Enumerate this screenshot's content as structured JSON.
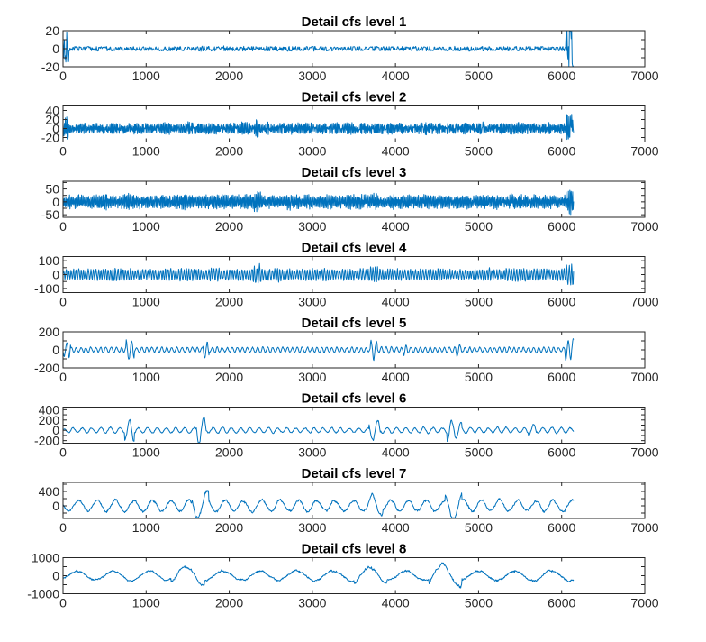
{
  "chart_data": [
    {
      "type": "line",
      "title": "Detail cfs level 1",
      "n": 6144,
      "seed": 11,
      "period": 5,
      "baseAmp": 2.2,
      "bursts": [
        [
          0,
          70,
          8
        ],
        [
          6050,
          6144,
          14
        ]
      ],
      "xlim": [
        0,
        7000
      ],
      "ylim": [
        -20,
        20
      ],
      "xticks": [
        0,
        1000,
        2000,
        3000,
        4000,
        5000,
        6000,
        7000
      ],
      "xtick_labels": [
        "0",
        "1000",
        "2000",
        "3000",
        "4000",
        "5000",
        "6000",
        "7000"
      ],
      "yticks": [
        20,
        0,
        -20
      ],
      "ytick_labels": [
        "20",
        "0",
        "-20"
      ],
      "minor_y": 10
    },
    {
      "type": "line",
      "title": "Detail cfs level 2",
      "n": 6144,
      "seed": 22,
      "period": 9,
      "baseAmp": 11,
      "bursts": [
        [
          0,
          70,
          3
        ],
        [
          2300,
          2350,
          1.6
        ],
        [
          6050,
          6144,
          3
        ]
      ],
      "xlim": [
        0,
        7000
      ],
      "ylim": [
        -30,
        50
      ],
      "xticks": [
        0,
        1000,
        2000,
        3000,
        4000,
        5000,
        6000,
        7000
      ],
      "xtick_labels": [
        "0",
        "1000",
        "2000",
        "3000",
        "4000",
        "5000",
        "6000",
        "7000"
      ],
      "yticks": [
        40,
        20,
        0,
        -20
      ],
      "ytick_labels": [
        "40",
        "20",
        "0",
        "-20"
      ],
      "minor_y": 10
    },
    {
      "type": "line",
      "title": "Detail cfs level 3",
      "n": 6144,
      "seed": 33,
      "period": 16,
      "baseAmp": 24,
      "bursts": [
        [
          2300,
          2380,
          1.6
        ],
        [
          3700,
          3800,
          1.3
        ],
        [
          6050,
          6144,
          2
        ]
      ],
      "xlim": [
        0,
        7000
      ],
      "ylim": [
        -60,
        80
      ],
      "xticks": [
        0,
        1000,
        2000,
        3000,
        4000,
        5000,
        6000,
        7000
      ],
      "xtick_labels": [
        "0",
        "1000",
        "2000",
        "3000",
        "4000",
        "5000",
        "6000",
        "7000"
      ],
      "yticks": [
        50,
        0,
        -50
      ],
      "ytick_labels": [
        "50",
        "0",
        "-50"
      ],
      "minor_y": 25
    },
    {
      "type": "line",
      "title": "Detail cfs level 4",
      "n": 6144,
      "seed": 44,
      "period": 30,
      "baseAmp": 38,
      "bursts": [
        [
          2280,
          2380,
          1.7
        ],
        [
          3700,
          3800,
          1.4
        ],
        [
          5100,
          5150,
          1.3
        ],
        [
          6050,
          6144,
          1.8
        ]
      ],
      "xlim": [
        0,
        7000
      ],
      "ylim": [
        -130,
        130
      ],
      "xticks": [
        0,
        1000,
        2000,
        3000,
        4000,
        5000,
        6000,
        7000
      ],
      "xtick_labels": [
        "0",
        "1000",
        "2000",
        "3000",
        "4000",
        "5000",
        "6000",
        "7000"
      ],
      "yticks": [
        100,
        0,
        -100
      ],
      "ytick_labels": [
        "100",
        "0",
        "-100"
      ],
      "minor_y": 50
    },
    {
      "type": "line",
      "title": "Detail cfs level 5",
      "n": 6144,
      "seed": 55,
      "period": 60,
      "baseAmp": 28,
      "bursts": [
        [
          0,
          90,
          4
        ],
        [
          760,
          860,
          3.5
        ],
        [
          1680,
          1760,
          3
        ],
        [
          3700,
          3780,
          3.5
        ],
        [
          4100,
          4150,
          2
        ],
        [
          4720,
          4800,
          2.5
        ],
        [
          6040,
          6144,
          4
        ]
      ],
      "xlim": [
        0,
        7000
      ],
      "ylim": [
        -200,
        200
      ],
      "xticks": [
        0,
        1000,
        2000,
        3000,
        4000,
        5000,
        6000,
        7000
      ],
      "xtick_labels": [
        "0",
        "1000",
        "2000",
        "3000",
        "4000",
        "5000",
        "6000",
        "7000"
      ],
      "yticks": [
        200,
        0,
        -200
      ],
      "ytick_labels": [
        "200",
        "0",
        "-200"
      ],
      "minor_y": 100
    },
    {
      "type": "line",
      "title": "Detail cfs level 6",
      "n": 6144,
      "seed": 66,
      "period": 110,
      "baseAmp": 50,
      "bursts": [
        [
          740,
          860,
          4.5
        ],
        [
          1600,
          1720,
          5
        ],
        [
          3680,
          3820,
          4
        ],
        [
          4620,
          4800,
          3.5
        ],
        [
          5600,
          5700,
          2
        ]
      ],
      "xlim": [
        0,
        7000
      ],
      "ylim": [
        -250,
        450
      ],
      "xticks": [
        0,
        1000,
        2000,
        3000,
        4000,
        5000,
        6000,
        7000
      ],
      "xtick_labels": [
        "0",
        "1000",
        "2000",
        "3000",
        "4000",
        "5000",
        "6000",
        "7000"
      ],
      "yticks": [
        400,
        200,
        0,
        -200
      ],
      "ytick_labels": [
        "400",
        "200",
        "0",
        "-200"
      ],
      "minor_y": 100
    },
    {
      "type": "line",
      "title": "Detail cfs level 7",
      "n": 6144,
      "seed": 77,
      "period": 220,
      "baseAmp": 150,
      "bursts": [
        [
          1550,
          1750,
          2.6
        ],
        [
          3650,
          3850,
          2
        ],
        [
          4600,
          4800,
          2.6
        ]
      ],
      "xlim": [
        0,
        7000
      ],
      "ylim": [
        -350,
        650
      ],
      "xticks": [
        0,
        1000,
        2000,
        3000,
        4000,
        5000,
        6000,
        7000
      ],
      "xtick_labels": [
        "0",
        "1000",
        "2000",
        "3000",
        "4000",
        "5000",
        "6000",
        "7000"
      ],
      "yticks": [
        400,
        0
      ],
      "ytick_labels": [
        "400",
        "0"
      ],
      "minor_y": 200
    },
    {
      "type": "line",
      "title": "Detail cfs level 8",
      "n": 6144,
      "seed": 88,
      "period": 440,
      "baseAmp": 260,
      "bursts": [
        [
          1300,
          1700,
          2
        ],
        [
          3500,
          3900,
          1.8
        ],
        [
          4400,
          4800,
          2.4
        ]
      ],
      "xlim": [
        0,
        7000
      ],
      "ylim": [
        -1000,
        1000
      ],
      "xticks": [
        0,
        1000,
        2000,
        3000,
        4000,
        5000,
        6000,
        7000
      ],
      "xtick_labels": [
        "0",
        "1000",
        "2000",
        "3000",
        "4000",
        "5000",
        "6000",
        "7000"
      ],
      "yticks": [
        1000,
        0,
        -1000
      ],
      "ytick_labels": [
        "1000",
        "0",
        "-1000"
      ],
      "minor_y": 500
    }
  ],
  "colors": {
    "line": "#0072BD",
    "axes": "#262626",
    "background": "#ffffff"
  }
}
